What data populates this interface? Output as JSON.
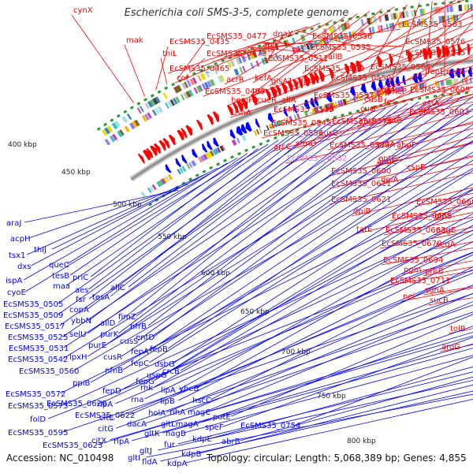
{
  "title": "Escherichia coli SMS-3-5, complete genome",
  "footer": {
    "accession": "Accession: NC_010498",
    "summary": "Topology: circular; Length: 5,068,389 bp; Genes: 4,855"
  },
  "colors": {
    "forward_gene": "#ff0000",
    "reverse_gene": "#0000ff",
    "backbone": "#909090",
    "tick": "#2a8a2a",
    "highlight_label": "#ff66cc"
  },
  "kbp_ticks": [
    "400 kbp",
    "450 kbp",
    "500 kbp",
    "550 kbp",
    "600 kbp",
    "650 kbp",
    "700 kbp",
    "750 kbp",
    "800 kbp"
  ],
  "top_labels": [
    "cynX",
    "mak",
    "EcSMS35_0435",
    "thiL",
    "EcSMS35_0477",
    "EcSMS35_0473",
    "dnaX",
    "apt",
    "EcSMS35_0536",
    "EcSMS35_0563",
    "EcSMS35_0535",
    "EcSMS35_0576",
    "allB",
    "EcSMS35_0511",
    "EcSMS35_0575",
    "EcSMS35_0465",
    "cof",
    "acrR",
    "kefA",
    "gsk",
    "glsA1",
    "allR",
    "EcSMS35_0529",
    "EcSMS35_0564",
    "pheP",
    "fepE",
    "entB",
    "EcSMS35_0559",
    "EcSMS35_0499",
    "cusA",
    "EcSMS35_0605",
    "hemH",
    "cueR",
    "allA",
    "EcSMS35_0557",
    "cusB",
    "fes",
    "cstA",
    "ushA",
    "EcSMS35_0539",
    "cysS",
    "cusF",
    "EcSMS35_0603",
    "EcSMS35_0545",
    "EcSMS35_0578",
    "entF",
    "entE",
    "EcSMS35_0556",
    "cusC",
    "arcC",
    "sfmD",
    "EcSMS35_0589",
    "entA",
    "ahpF",
    "entC",
    "EcSMS35_0582",
    "ahpC",
    "EcSMS35_0600",
    "cspE",
    "EcSMS35_0611",
    "dpiA",
    "EcSMS35_0621",
    "dpiB",
    "EcSMS35_0666",
    "tatE",
    "EcSMS35_0665",
    "glnS",
    "EcSMS35_0663",
    "nagE",
    "EcSMS35_0670",
    "seqA",
    "EcSMS35_0694",
    "pgm",
    "phrB",
    "EcSMS35_0711",
    "nei",
    "sdhA",
    "sucB",
    "tolB",
    "aroG"
  ],
  "bottom_labels": [
    "araJ",
    "acpH",
    "thiJ",
    "tsx1",
    "dxs",
    "queC",
    "ispA",
    "tesB",
    "priC",
    "cyoE",
    "maa",
    "aes",
    "EcSMS35_0505",
    "fsr",
    "tesA",
    "EcSMS35_0509",
    "copA",
    "allC",
    "EcSMS35_0517",
    "ybbN",
    "allD",
    "fimZ",
    "EcSMS35_0525",
    "selU",
    "purK",
    "nfrB",
    "EcSMS35_0531",
    "purE",
    "cusS",
    "entD",
    "EcSMS35_0542",
    "lpxH",
    "cusR",
    "fepA",
    "fepB",
    "EcSMS35_0560",
    "nfnB",
    "fepC",
    "dsbG",
    "ppiB",
    "fepG",
    "uspG",
    "crcB",
    "EcSMS35_0572",
    "fepD",
    "rnk",
    "lipA",
    "ybeB",
    "EcSMS35_0573",
    "EcSMS35_0620",
    "rna",
    "lipB",
    "hscC",
    "rlpA",
    "folD",
    "EcSMS35_0622",
    "citE",
    "holA",
    "rihA",
    "magC",
    "potE",
    "EcSMS35_0595",
    "citG",
    "dacA",
    "gltLmagA",
    "speF",
    "EcSMS35_0754",
    "EcSMS35_0623",
    "citX",
    "rlpA",
    "gltK",
    "nagB",
    "kdpE",
    "abrB",
    "fur",
    "kdpB",
    "gltJ",
    "fldA",
    "kdpA",
    "gltI"
  ]
}
